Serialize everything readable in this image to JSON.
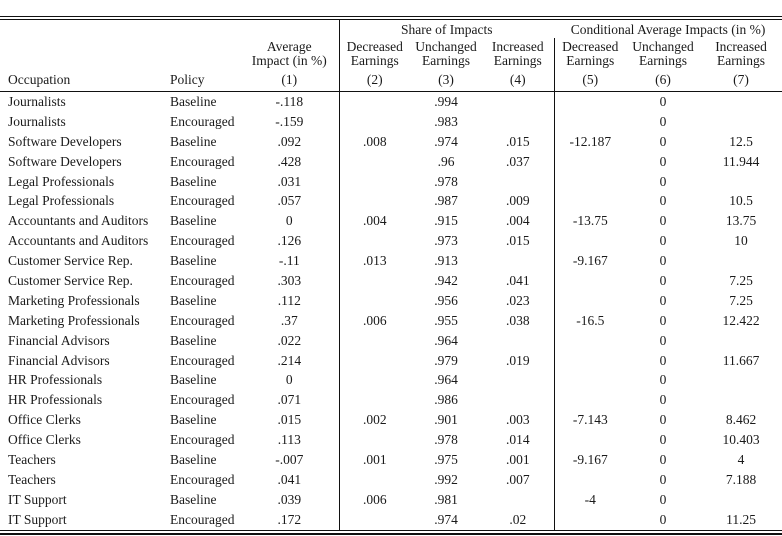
{
  "table": {
    "header": {
      "share_group": "Share of Impacts",
      "conditional_group": "Conditional Average Impacts (in %)",
      "occupation": "Occupation",
      "policy": "Policy",
      "avg_impact": "Average\nImpact (in %)",
      "share_decreased": "Decreased\nEarnings",
      "share_unchanged": "Unchanged\nEarnings",
      "share_increased": "Increased\nEarnings",
      "cond_decreased": "Decreased\nEarnings",
      "cond_unchanged": "Unchanged\nEarnings",
      "cond_increased": "Increased\nEarnings",
      "numbers": [
        "(1)",
        "(2)",
        "(3)",
        "(4)",
        "(5)",
        "(6)",
        "(7)"
      ]
    },
    "rows": [
      [
        "Journalists",
        "Baseline",
        "-.118",
        "",
        ".994",
        "",
        "",
        "0",
        ""
      ],
      [
        "Journalists",
        "Encouraged",
        "-.159",
        "",
        ".983",
        "",
        "",
        "0",
        ""
      ],
      [
        "Software Developers",
        "Baseline",
        ".092",
        ".008",
        ".974",
        ".015",
        "-12.187",
        "0",
        "12.5"
      ],
      [
        "Software Developers",
        "Encouraged",
        ".428",
        "",
        ".96",
        ".037",
        "",
        "0",
        "11.944"
      ],
      [
        "Legal Professionals",
        "Baseline",
        ".031",
        "",
        ".978",
        "",
        "",
        "0",
        ""
      ],
      [
        "Legal Professionals",
        "Encouraged",
        ".057",
        "",
        ".987",
        ".009",
        "",
        "0",
        "10.5"
      ],
      [
        "Accountants and Auditors",
        "Baseline",
        "0",
        ".004",
        ".915",
        ".004",
        "-13.75",
        "0",
        "13.75"
      ],
      [
        "Accountants and Auditors",
        "Encouraged",
        ".126",
        "",
        ".973",
        ".015",
        "",
        "0",
        "10"
      ],
      [
        "Customer Service Rep.",
        "Baseline",
        "-.11",
        ".013",
        ".913",
        "",
        "-9.167",
        "0",
        ""
      ],
      [
        "Customer Service Rep.",
        "Encouraged",
        ".303",
        "",
        ".942",
        ".041",
        "",
        "0",
        "7.25"
      ],
      [
        "Marketing Professionals",
        "Baseline",
        ".112",
        "",
        ".956",
        ".023",
        "",
        "0",
        "7.25"
      ],
      [
        "Marketing Professionals",
        "Encouraged",
        ".37",
        ".006",
        ".955",
        ".038",
        "-16.5",
        "0",
        "12.422"
      ],
      [
        "Financial Advisors",
        "Baseline",
        ".022",
        "",
        ".964",
        "",
        "",
        "0",
        ""
      ],
      [
        "Financial Advisors",
        "Encouraged",
        ".214",
        "",
        ".979",
        ".019",
        "",
        "0",
        "11.667"
      ],
      [
        "HR Professionals",
        "Baseline",
        "0",
        "",
        ".964",
        "",
        "",
        "0",
        ""
      ],
      [
        "HR Professionals",
        "Encouraged",
        ".071",
        "",
        ".986",
        "",
        "",
        "0",
        ""
      ],
      [
        "Office Clerks",
        "Baseline",
        ".015",
        ".002",
        ".901",
        ".003",
        "-7.143",
        "0",
        "8.462"
      ],
      [
        "Office Clerks",
        "Encouraged",
        ".113",
        "",
        ".978",
        ".014",
        "",
        "0",
        "10.403"
      ],
      [
        "Teachers",
        "Baseline",
        "-.007",
        ".001",
        ".975",
        ".001",
        "-9.167",
        "0",
        "4"
      ],
      [
        "Teachers",
        "Encouraged",
        ".041",
        "",
        ".992",
        ".007",
        "",
        "0",
        "7.188"
      ],
      [
        "IT Support",
        "Baseline",
        ".039",
        ".006",
        ".981",
        "",
        "-4",
        "0",
        ""
      ],
      [
        "IT Support",
        "Encouraged",
        ".172",
        "",
        ".974",
        ".02",
        "",
        "0",
        "11.25"
      ]
    ],
    "cell_names": [
      "cell-occupation",
      "cell-policy",
      "cell-avg-impact",
      "cell-share-decreased",
      "cell-share-unchanged",
      "cell-share-increased",
      "cell-cond-decreased",
      "cell-cond-unchanged",
      "cell-cond-increased"
    ]
  }
}
